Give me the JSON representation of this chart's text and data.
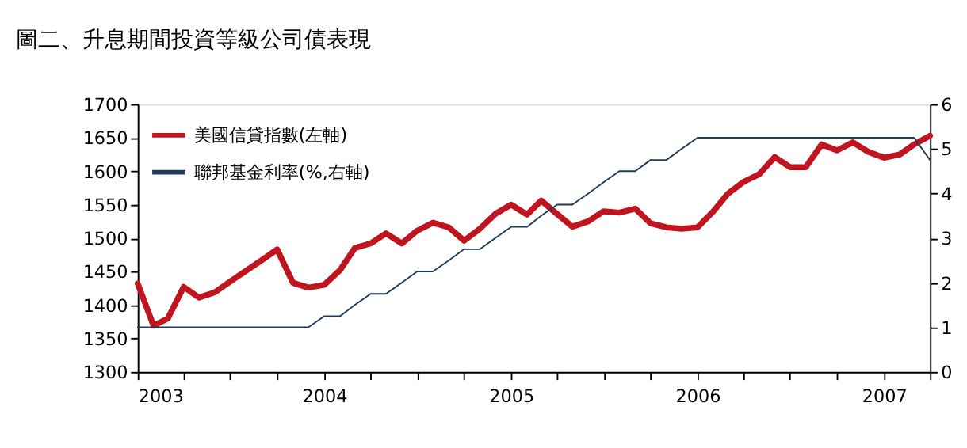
{
  "chart_data": {
    "type": "line",
    "title": "圖二、升息期間投資等級公司債表現",
    "x": [
      "2003-01",
      "2003-02",
      "2003-03",
      "2003-04",
      "2003-05",
      "2003-06",
      "2003-07",
      "2003-08",
      "2003-09",
      "2003-10",
      "2003-11",
      "2003-12",
      "2004-01",
      "2004-02",
      "2004-03",
      "2004-04",
      "2004-05",
      "2004-06",
      "2004-07",
      "2004-08",
      "2004-09",
      "2004-10",
      "2004-11",
      "2004-12",
      "2005-01",
      "2005-02",
      "2005-03",
      "2005-04",
      "2005-05",
      "2005-06",
      "2005-07",
      "2005-08",
      "2005-09",
      "2005-10",
      "2005-11",
      "2005-12",
      "2006-01",
      "2006-02",
      "2006-03",
      "2006-04",
      "2006-05",
      "2006-06",
      "2006-07",
      "2006-08",
      "2006-09",
      "2006-10",
      "2006-11",
      "2006-12",
      "2007-01",
      "2007-02",
      "2007-03",
      "2007-04"
    ],
    "series": [
      {
        "name": "美國信貸指數(左軸)",
        "color": "#c0141e",
        "axis": "y",
        "values": [
          1432,
          1369,
          1380,
          1427,
          1411,
          1419,
          1435,
          1451,
          1467,
          1483,
          1433,
          1426,
          1430,
          1452,
          1485,
          1492,
          1507,
          1492,
          1511,
          1523,
          1516,
          1496,
          1514,
          1536,
          1550,
          1535,
          1556,
          1536,
          1517,
          1525,
          1540,
          1538,
          1544,
          1522,
          1516,
          1514,
          1516,
          1540,
          1566,
          1584,
          1595,
          1621,
          1606,
          1606,
          1640,
          1631,
          1643,
          1629,
          1620,
          1625,
          1640,
          1653
        ]
      },
      {
        "name": "聯邦基金利率(%,右軸)",
        "color": "#1f3b57",
        "axis": "y2",
        "values": [
          1,
          1,
          1,
          1,
          1,
          1,
          1,
          1,
          1,
          1,
          1,
          1,
          1.25,
          1.25,
          1.5,
          1.75,
          1.75,
          2,
          2.25,
          2.25,
          2.5,
          2.75,
          2.75,
          3,
          3.25,
          3.25,
          3.5,
          3.75,
          3.75,
          4,
          4.25,
          4.5,
          4.5,
          4.75,
          4.75,
          5,
          5.25,
          5.25,
          5.25,
          5.25,
          5.25,
          5.25,
          5.25,
          5.25,
          5.25,
          5.25,
          5.25,
          5.25,
          5.25,
          5.25,
          5.25,
          4.75
        ]
      }
    ],
    "xlim": [
      "2003-01",
      "2007-04"
    ],
    "xticks": [
      {
        "value": "2003-01",
        "label": "2003"
      },
      {
        "value": "2003-04",
        "label": null
      },
      {
        "value": "2003-07",
        "label": null
      },
      {
        "value": "2003-10",
        "label": null
      },
      {
        "value": "2004-01",
        "label": "2004"
      },
      {
        "value": "2004-04",
        "label": null
      },
      {
        "value": "2004-07",
        "label": null
      },
      {
        "value": "2004-10",
        "label": null
      },
      {
        "value": "2005-01",
        "label": "2005"
      },
      {
        "value": "2005-04",
        "label": null
      },
      {
        "value": "2005-07",
        "label": null
      },
      {
        "value": "2005-10",
        "label": null
      },
      {
        "value": "2006-01",
        "label": "2006"
      },
      {
        "value": "2006-04",
        "label": null
      },
      {
        "value": "2006-07",
        "label": null
      },
      {
        "value": "2006-10",
        "label": null
      },
      {
        "value": "2007-01",
        "label": "2007"
      },
      {
        "value": "2007-04",
        "label": null
      }
    ],
    "ylim": [
      1300,
      1700
    ],
    "yticks": [
      1300,
      1350,
      1400,
      1450,
      1500,
      1550,
      1600,
      1650,
      1700
    ],
    "y2lim": [
      0,
      6
    ],
    "y2ticks": [
      0,
      1,
      2,
      3,
      4,
      5,
      6
    ],
    "grid": false,
    "legend": "top left",
    "marker": "none",
    "line_style": "solid"
  }
}
